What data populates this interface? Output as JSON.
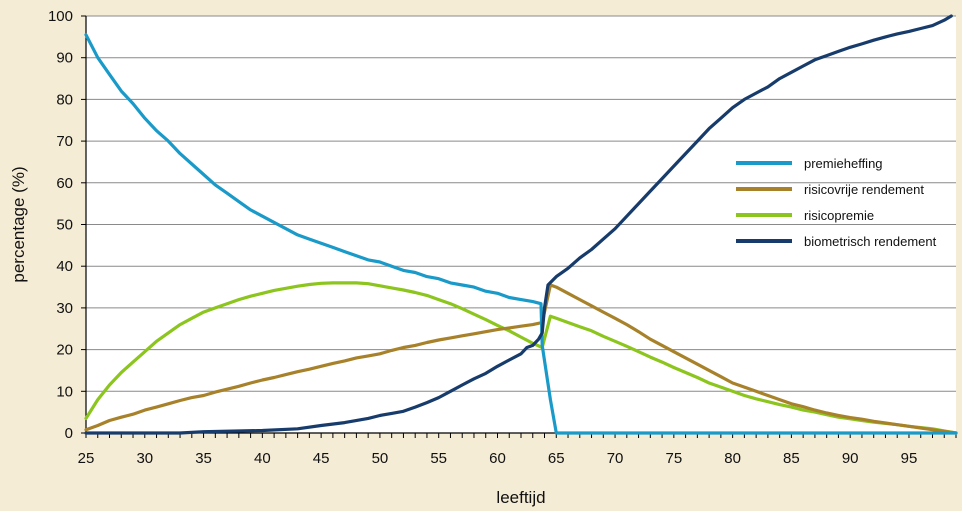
{
  "chart_data": {
    "type": "line",
    "xlabel": "leeftijd",
    "ylabel": "percentage (%)",
    "xlim": [
      25,
      99
    ],
    "ylim": [
      0,
      100
    ],
    "x_ticks": [
      25,
      30,
      35,
      40,
      45,
      50,
      55,
      60,
      65,
      70,
      75,
      80,
      85,
      90,
      95
    ],
    "y_ticks": [
      0,
      10,
      20,
      30,
      40,
      50,
      60,
      70,
      80,
      90,
      100
    ],
    "grid": "horizontal",
    "legend_position": "right",
    "series": [
      {
        "name": "premieheffing",
        "color": "#1a9ac9",
        "points": [
          [
            25,
            95.5
          ],
          [
            26,
            90
          ],
          [
            27,
            86
          ],
          [
            28,
            82
          ],
          [
            29,
            79
          ],
          [
            30,
            75.5
          ],
          [
            31,
            72.5
          ],
          [
            32,
            70
          ],
          [
            33,
            67
          ],
          [
            34,
            64.5
          ],
          [
            35,
            62
          ],
          [
            36,
            59.5
          ],
          [
            37,
            57.5
          ],
          [
            38,
            55.5
          ],
          [
            39,
            53.5
          ],
          [
            40,
            52
          ],
          [
            41,
            50.5
          ],
          [
            42,
            49
          ],
          [
            43,
            47.5
          ],
          [
            44,
            46.5
          ],
          [
            45,
            45.5
          ],
          [
            46,
            44.5
          ],
          [
            47,
            43.5
          ],
          [
            48,
            42.5
          ],
          [
            49,
            41.5
          ],
          [
            50,
            41
          ],
          [
            51,
            40
          ],
          [
            52,
            39
          ],
          [
            53,
            38.5
          ],
          [
            54,
            37.5
          ],
          [
            55,
            37
          ],
          [
            56,
            36
          ],
          [
            57,
            35.5
          ],
          [
            58,
            35
          ],
          [
            59,
            34
          ],
          [
            60,
            33.5
          ],
          [
            61,
            32.5
          ],
          [
            62,
            32
          ],
          [
            63,
            31.5
          ],
          [
            63.7,
            31
          ],
          [
            63.8,
            21
          ],
          [
            64.5,
            8
          ],
          [
            65,
            0
          ],
          [
            66,
            0
          ],
          [
            99,
            0
          ]
        ]
      },
      {
        "name": "risicovrije rendement",
        "color": "#a8822a",
        "points": [
          [
            25,
            0.8
          ],
          [
            26,
            1.8
          ],
          [
            27,
            3
          ],
          [
            28,
            3.8
          ],
          [
            29,
            4.5
          ],
          [
            30,
            5.5
          ],
          [
            31,
            6.2
          ],
          [
            32,
            7
          ],
          [
            33,
            7.8
          ],
          [
            34,
            8.5
          ],
          [
            35,
            9
          ],
          [
            36,
            9.8
          ],
          [
            37,
            10.5
          ],
          [
            38,
            11.2
          ],
          [
            39,
            12
          ],
          [
            40,
            12.7
          ],
          [
            41,
            13.3
          ],
          [
            42,
            14
          ],
          [
            43,
            14.7
          ],
          [
            44,
            15.3
          ],
          [
            45,
            16
          ],
          [
            46,
            16.7
          ],
          [
            47,
            17.3
          ],
          [
            48,
            18
          ],
          [
            49,
            18.5
          ],
          [
            50,
            19
          ],
          [
            51,
            19.8
          ],
          [
            52,
            20.5
          ],
          [
            53,
            21
          ],
          [
            54,
            21.7
          ],
          [
            55,
            22.3
          ],
          [
            56,
            22.8
          ],
          [
            57,
            23.3
          ],
          [
            58,
            23.8
          ],
          [
            59,
            24.3
          ],
          [
            60,
            24.8
          ],
          [
            61,
            25.2
          ],
          [
            62,
            25.6
          ],
          [
            63,
            26
          ],
          [
            63.8,
            26.5
          ],
          [
            64.5,
            35.5
          ],
          [
            65,
            35
          ],
          [
            66,
            33.5
          ],
          [
            67,
            32
          ],
          [
            68,
            30.5
          ],
          [
            69,
            29
          ],
          [
            70,
            27.5
          ],
          [
            71,
            26
          ],
          [
            72,
            24.3
          ],
          [
            73,
            22.5
          ],
          [
            74,
            21
          ],
          [
            75,
            19.5
          ],
          [
            76,
            18
          ],
          [
            77,
            16.5
          ],
          [
            78,
            15
          ],
          [
            79,
            13.5
          ],
          [
            80,
            12
          ],
          [
            81,
            11
          ],
          [
            82,
            10
          ],
          [
            83,
            9
          ],
          [
            84,
            8
          ],
          [
            85,
            7
          ],
          [
            86,
            6.3
          ],
          [
            87,
            5.5
          ],
          [
            88,
            4.8
          ],
          [
            89,
            4.2
          ],
          [
            90,
            3.7
          ],
          [
            91,
            3.3
          ],
          [
            92,
            2.8
          ],
          [
            93,
            2.4
          ],
          [
            94,
            2
          ],
          [
            95,
            1.6
          ],
          [
            96,
            1.2
          ],
          [
            97,
            0.8
          ],
          [
            98,
            0.4
          ],
          [
            99,
            0
          ]
        ]
      },
      {
        "name": "risicopremie",
        "color": "#8cc51e",
        "points": [
          [
            25,
            3.5
          ],
          [
            26,
            8
          ],
          [
            27,
            11.5
          ],
          [
            28,
            14.5
          ],
          [
            29,
            17
          ],
          [
            30,
            19.5
          ],
          [
            31,
            22
          ],
          [
            32,
            24
          ],
          [
            33,
            26
          ],
          [
            34,
            27.5
          ],
          [
            35,
            29
          ],
          [
            36,
            30
          ],
          [
            37,
            31
          ],
          [
            38,
            32
          ],
          [
            39,
            32.8
          ],
          [
            40,
            33.5
          ],
          [
            41,
            34.2
          ],
          [
            42,
            34.7
          ],
          [
            43,
            35.2
          ],
          [
            44,
            35.6
          ],
          [
            45,
            35.9
          ],
          [
            46,
            36
          ],
          [
            47,
            36
          ],
          [
            48,
            36
          ],
          [
            49,
            35.8
          ],
          [
            50,
            35.3
          ],
          [
            51,
            34.8
          ],
          [
            52,
            34.3
          ],
          [
            53,
            33.7
          ],
          [
            54,
            33
          ],
          [
            55,
            32
          ],
          [
            56,
            31
          ],
          [
            57,
            29.8
          ],
          [
            58,
            28.5
          ],
          [
            59,
            27.2
          ],
          [
            60,
            25.8
          ],
          [
            61,
            24.5
          ],
          [
            62,
            23
          ],
          [
            63,
            21.5
          ],
          [
            63.8,
            20.5
          ],
          [
            64.5,
            28
          ],
          [
            65,
            27.5
          ],
          [
            66,
            26.5
          ],
          [
            67,
            25.5
          ],
          [
            68,
            24.5
          ],
          [
            69,
            23.2
          ],
          [
            70,
            22
          ],
          [
            71,
            20.8
          ],
          [
            72,
            19.5
          ],
          [
            73,
            18.2
          ],
          [
            74,
            17
          ],
          [
            75,
            15.7
          ],
          [
            76,
            14.5
          ],
          [
            77,
            13.3
          ],
          [
            78,
            12
          ],
          [
            79,
            11
          ],
          [
            80,
            10
          ],
          [
            81,
            9
          ],
          [
            82,
            8.2
          ],
          [
            83,
            7.5
          ],
          [
            84,
            6.8
          ],
          [
            85,
            6.2
          ],
          [
            86,
            5.5
          ],
          [
            87,
            5
          ],
          [
            88,
            4.4
          ],
          [
            89,
            3.8
          ],
          [
            90,
            3.4
          ],
          [
            91,
            3
          ],
          [
            92,
            2.6
          ],
          [
            93,
            2.3
          ],
          [
            94,
            2
          ],
          [
            95,
            1.6
          ],
          [
            96,
            1.3
          ],
          [
            97,
            1
          ],
          [
            98,
            0.5
          ],
          [
            99,
            0
          ]
        ]
      },
      {
        "name": "biometrisch rendement",
        "color": "#173c6c",
        "points": [
          [
            25,
            0
          ],
          [
            33,
            0
          ],
          [
            35,
            0.3
          ],
          [
            40,
            0.6
          ],
          [
            43,
            1
          ],
          [
            45,
            1.8
          ],
          [
            47,
            2.5
          ],
          [
            49,
            3.5
          ],
          [
            50,
            4.2
          ],
          [
            51,
            4.7
          ],
          [
            52,
            5.2
          ],
          [
            53,
            6.2
          ],
          [
            54,
            7.3
          ],
          [
            55,
            8.5
          ],
          [
            56,
            10
          ],
          [
            57,
            11.5
          ],
          [
            58,
            13
          ],
          [
            59,
            14.3
          ],
          [
            60,
            16
          ],
          [
            61,
            17.5
          ],
          [
            62,
            19
          ],
          [
            62.5,
            20.5
          ],
          [
            63,
            21
          ],
          [
            63.5,
            22.5
          ],
          [
            63.8,
            24
          ],
          [
            64,
            30
          ],
          [
            64.3,
            35.5
          ],
          [
            65,
            37.5
          ],
          [
            66,
            39.5
          ],
          [
            67,
            42
          ],
          [
            68,
            44
          ],
          [
            69,
            46.5
          ],
          [
            70,
            49
          ],
          [
            71,
            52
          ],
          [
            72,
            55
          ],
          [
            73,
            58
          ],
          [
            74,
            61
          ],
          [
            75,
            64
          ],
          [
            76,
            67
          ],
          [
            77,
            70
          ],
          [
            78,
            73
          ],
          [
            79,
            75.5
          ],
          [
            80,
            78
          ],
          [
            81,
            80
          ],
          [
            82,
            81.5
          ],
          [
            83,
            83
          ],
          [
            84,
            85
          ],
          [
            85,
            86.5
          ],
          [
            86,
            88
          ],
          [
            87,
            89.5
          ],
          [
            88,
            90.5
          ],
          [
            89,
            91.5
          ],
          [
            90,
            92.5
          ],
          [
            91,
            93.3
          ],
          [
            92,
            94.2
          ],
          [
            93,
            95
          ],
          [
            94,
            95.7
          ],
          [
            95,
            96.3
          ],
          [
            96,
            97
          ],
          [
            97,
            97.7
          ],
          [
            98,
            99
          ],
          [
            98.6,
            100
          ]
        ]
      }
    ]
  }
}
